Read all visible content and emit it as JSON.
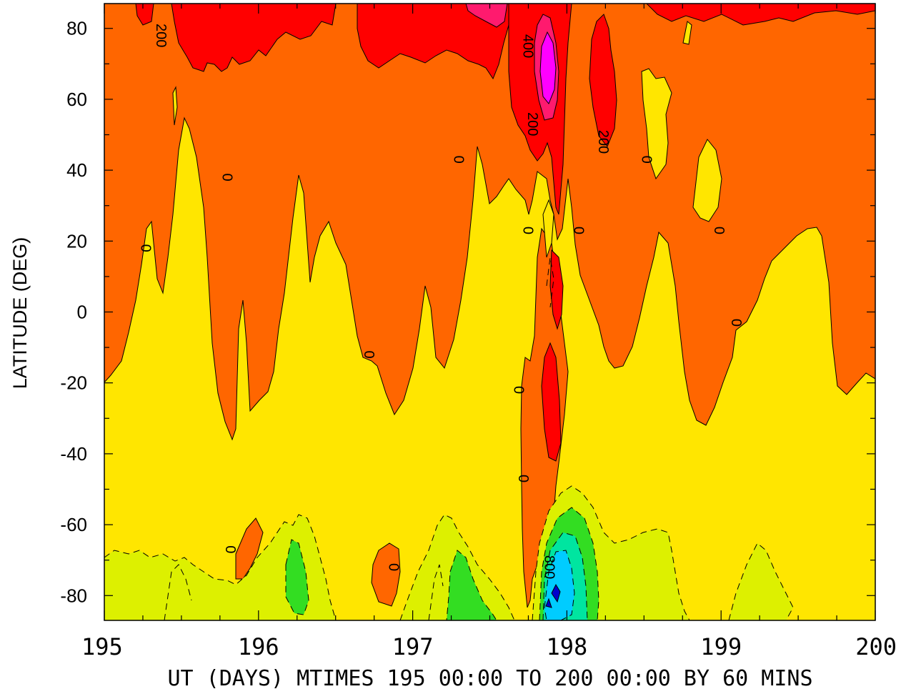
{
  "chart_data": {
    "type": "heatmap",
    "xlabel": "UT (DAYS) MTIMES 195 00:00 TO 200 00:00 BY   60 MINS",
    "ylabel": "LATITUDE (DEG)",
    "xlim": [
      195,
      200
    ],
    "ylim": [
      -87,
      87
    ],
    "x_ticks": [
      "195",
      "196",
      "197",
      "198",
      "199",
      "200"
    ],
    "y_ticks": [
      "80",
      "60",
      "40",
      "20",
      "0",
      "-20",
      "-40",
      "-60",
      "-80"
    ],
    "contour_levels": [
      -1000,
      -800,
      -600,
      -400,
      -200,
      0,
      200,
      400,
      600
    ],
    "colors": {
      "level_neg1000": "#0000cc",
      "level_neg800": "#00ccff",
      "level_neg600": "#00e5a0",
      "level_neg400": "#33dd22",
      "level_neg200": "#ddf000",
      "level_0": "#ffe600",
      "level_200": "#ff6600",
      "level_400": "#ff0000",
      "level_600": "#ff0080",
      "level_800": "#ff00ff"
    },
    "contour_labels": [
      {
        "text": "200",
        "x": 195.37,
        "y": 78
      },
      {
        "text": "400",
        "x": 197.75,
        "y": 75
      },
      {
        "text": "200",
        "x": 197.78,
        "y": 53
      },
      {
        "text": "200",
        "x": 198.24,
        "y": 48
      },
      {
        "text": "0",
        "x": 195.8,
        "y": 38
      },
      {
        "text": "0",
        "x": 197.3,
        "y": 43
      },
      {
        "text": "0",
        "x": 198.52,
        "y": 43
      },
      {
        "text": "0",
        "x": 195.27,
        "y": 18
      },
      {
        "text": "0",
        "x": 197.75,
        "y": 23
      },
      {
        "text": "0",
        "x": 198.08,
        "y": 23
      },
      {
        "text": "0",
        "x": 198.99,
        "y": 23
      },
      {
        "text": "0",
        "x": 199.1,
        "y": -3
      },
      {
        "text": "0",
        "x": 196.72,
        "y": -12
      },
      {
        "text": "0",
        "x": 197.69,
        "y": -22
      },
      {
        "text": "0",
        "x": 197.72,
        "y": -47
      },
      {
        "text": "0",
        "x": 195.82,
        "y": -67
      },
      {
        "text": "0",
        "x": 196.88,
        "y": -72
      },
      {
        "text": "800",
        "x": 197.89,
        "y": -72
      }
    ]
  }
}
